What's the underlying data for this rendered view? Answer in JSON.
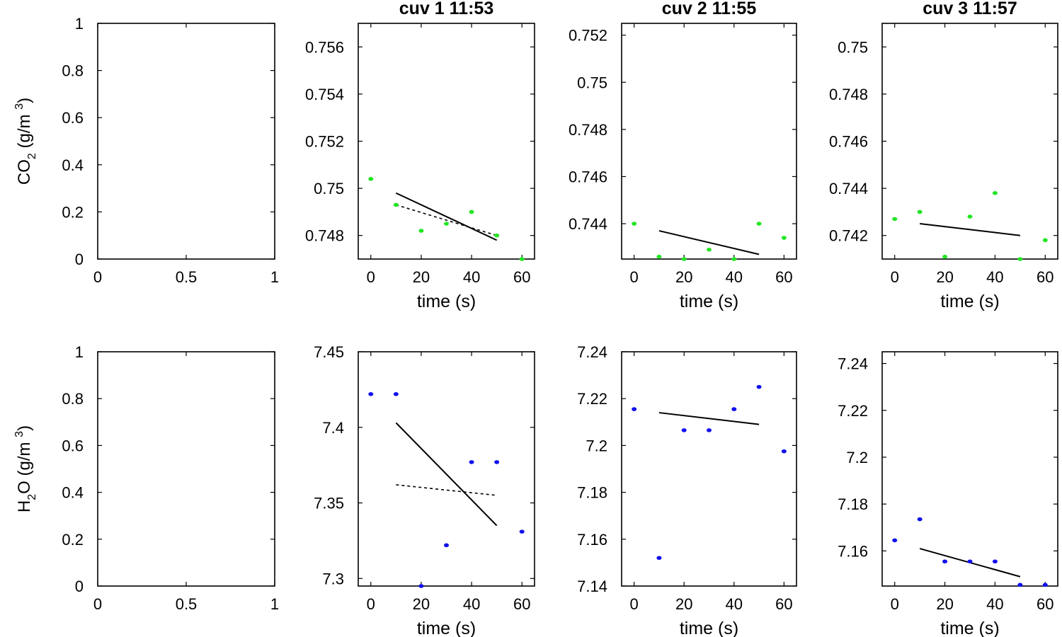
{
  "chart_data": [
    {
      "type": "scatter",
      "ylabel": "CO2 (g/m 3)",
      "ylabel_parts": {
        "main": "CO",
        "sub": "2",
        "unit_open": " (g/m ",
        "sup": "3",
        "unit_close": ")"
      },
      "xlim": [
        0,
        1
      ],
      "ylim": [
        0,
        1
      ],
      "xticks": [
        "0",
        "0.5",
        "1"
      ],
      "yticks": [
        "0",
        "0.2",
        "0.4",
        "0.6",
        "0.8",
        "1"
      ],
      "series": []
    },
    {
      "type": "scatter",
      "title": "cuv 1 11:53",
      "xlabel": "time (s)",
      "xlim": [
        -5,
        65
      ],
      "ylim": [
        0.747,
        0.757
      ],
      "xticks": [
        "0",
        "20",
        "40",
        "60"
      ],
      "yticks": [
        "0.748",
        "0.75",
        "0.752",
        "0.754",
        "0.756"
      ],
      "point_color": "#22e622",
      "points": {
        "x": [
          0,
          10,
          20,
          30,
          40,
          50,
          60
        ],
        "y": [
          0.7504,
          0.7493,
          0.7482,
          0.7485,
          0.749,
          0.748,
          0.747
        ]
      },
      "fit_solid": {
        "x": [
          10,
          50
        ],
        "y": [
          0.7498,
          0.7478
        ]
      },
      "fit_dashed": {
        "x": [
          10,
          50
        ],
        "y": [
          0.7493,
          0.748
        ]
      }
    },
    {
      "type": "scatter",
      "title": "cuv 2 11:55",
      "xlabel": "time (s)",
      "xlim": [
        -5,
        65
      ],
      "ylim": [
        0.7425,
        0.7525
      ],
      "xticks": [
        "0",
        "20",
        "40",
        "60"
      ],
      "yticks": [
        "0.744",
        "0.746",
        "0.748",
        "0.75",
        "0.752"
      ],
      "point_color": "#22e622",
      "points": {
        "x": [
          0,
          10,
          20,
          30,
          40,
          50,
          60
        ],
        "y": [
          0.744,
          0.7426,
          0.7425,
          0.7429,
          0.7425,
          0.744,
          0.7434
        ]
      },
      "fit_solid": {
        "x": [
          10,
          50
        ],
        "y": [
          0.7437,
          0.7427
        ]
      }
    },
    {
      "type": "scatter",
      "title": "cuv 3 11:57",
      "xlabel": "time (s)",
      "xlim": [
        -5,
        65
      ],
      "ylim": [
        0.741,
        0.751
      ],
      "xticks": [
        "0",
        "20",
        "40",
        "60"
      ],
      "yticks": [
        "0.742",
        "0.744",
        "0.746",
        "0.748",
        "0.75"
      ],
      "point_color": "#22e622",
      "points": {
        "x": [
          0,
          10,
          20,
          30,
          40,
          50,
          60
        ],
        "y": [
          0.7427,
          0.743,
          0.7411,
          0.7428,
          0.7438,
          0.741,
          0.7418
        ]
      },
      "fit_solid": {
        "x": [
          10,
          50
        ],
        "y": [
          0.7425,
          0.742
        ]
      }
    },
    {
      "type": "scatter",
      "ylabel": "H2O (g/m 3)",
      "ylabel_parts": {
        "main": "H",
        "sub": "2",
        "main2": "O",
        "unit_open": " (g/m ",
        "sup": "3",
        "unit_close": ")"
      },
      "xlim": [
        0,
        1
      ],
      "ylim": [
        0,
        1
      ],
      "xticks": [
        "0",
        "0.5",
        "1"
      ],
      "yticks": [
        "0",
        "0.2",
        "0.4",
        "0.6",
        "0.8",
        "1"
      ],
      "series": []
    },
    {
      "type": "scatter",
      "xlabel": "time (s)",
      "xlim": [
        -5,
        65
      ],
      "ylim": [
        7.295,
        7.45
      ],
      "xticks": [
        "0",
        "20",
        "40",
        "60"
      ],
      "yticks": [
        "7.3",
        "7.35",
        "7.4",
        "7.45"
      ],
      "point_color": "#1010ee",
      "points": {
        "x": [
          0,
          10,
          20,
          30,
          40,
          50,
          60
        ],
        "y": [
          7.422,
          7.422,
          7.295,
          7.322,
          7.377,
          7.377,
          7.331
        ]
      },
      "fit_solid": {
        "x": [
          10,
          50
        ],
        "y": [
          7.403,
          7.335
        ]
      },
      "fit_dashed": {
        "x": [
          10,
          50
        ],
        "y": [
          7.362,
          7.355
        ]
      }
    },
    {
      "type": "scatter",
      "xlabel": "time (s)",
      "xlim": [
        -5,
        65
      ],
      "ylim": [
        7.14,
        7.24
      ],
      "xticks": [
        "0",
        "20",
        "40",
        "60"
      ],
      "yticks": [
        "7.14",
        "7.16",
        "7.18",
        "7.2",
        "7.22",
        "7.24"
      ],
      "point_color": "#1010ee",
      "points": {
        "x": [
          0,
          10,
          20,
          30,
          40,
          50,
          60
        ],
        "y": [
          7.2155,
          7.152,
          7.2065,
          7.2065,
          7.2155,
          7.225,
          7.1975
        ]
      },
      "fit_solid": {
        "x": [
          10,
          50
        ],
        "y": [
          7.214,
          7.209
        ]
      }
    },
    {
      "type": "scatter",
      "xlabel": "time (s)",
      "xlim": [
        -5,
        65
      ],
      "ylim": [
        7.145,
        7.245
      ],
      "xticks": [
        "0",
        "20",
        "40",
        "60"
      ],
      "yticks": [
        "7.16",
        "7.18",
        "7.2",
        "7.22",
        "7.24"
      ],
      "point_color": "#1010ee",
      "points": {
        "x": [
          0,
          10,
          20,
          30,
          40,
          50,
          60
        ],
        "y": [
          7.1645,
          7.1735,
          7.1555,
          7.1555,
          7.1555,
          7.1455,
          7.1455
        ]
      },
      "fit_solid": {
        "x": [
          10,
          50
        ],
        "y": [
          7.161,
          7.149
        ]
      }
    }
  ]
}
